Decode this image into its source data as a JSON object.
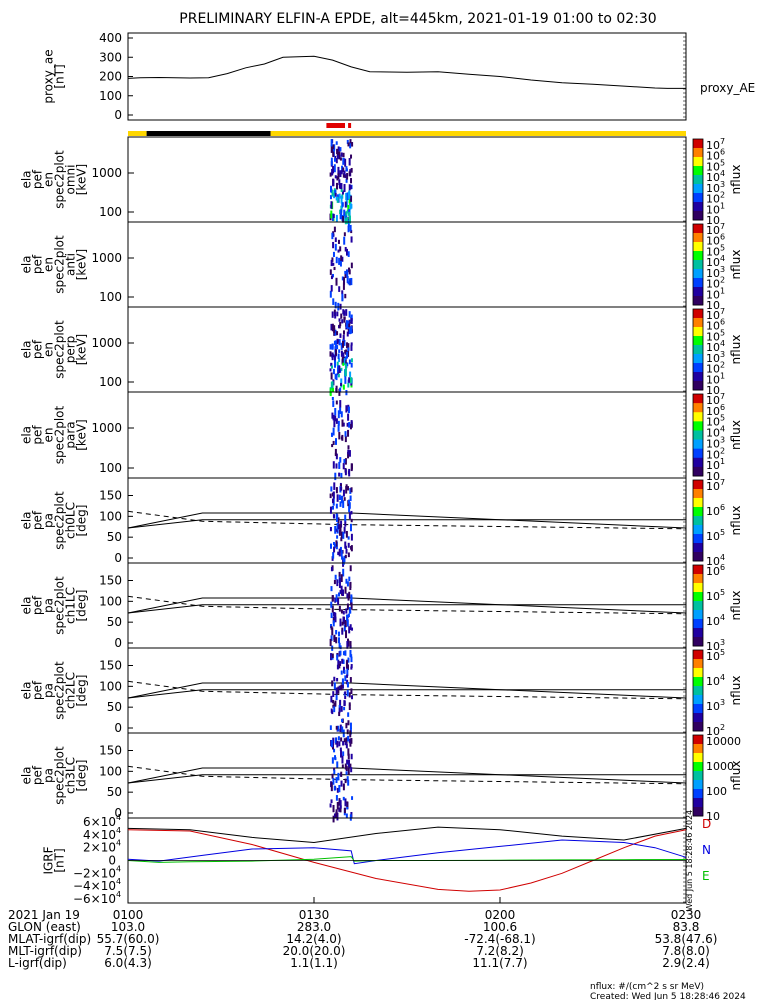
{
  "title": "PRELIMINARY ELFIN-A EPDE, alt=445km, 2021-01-19 01:00 to 02:30",
  "colors": {
    "bar_yellow": "#ffd700",
    "bar_black": "#000000",
    "bar_red": "#e00000",
    "igrf_black": "#000000",
    "igrf_blue": "#0000e0",
    "igrf_green": "#00c000",
    "igrf_red": "#d00000"
  },
  "chart_data": [
    {
      "type": "line",
      "panel": "proxy_ae",
      "ylabel_lines": [
        "proxy_ae",
        "[nT]"
      ],
      "legend": "proxy_AE",
      "ylim": [
        0,
        400
      ],
      "yticks": [
        "400",
        "300",
        "200",
        "100",
        "0"
      ],
      "x": [
        0,
        2,
        5,
        10,
        13,
        16,
        19,
        22,
        25,
        30,
        33,
        36,
        39,
        45,
        50,
        55,
        60,
        65,
        70,
        75,
        80,
        85,
        87,
        90
      ],
      "values": [
        190,
        193,
        195,
        192,
        193,
        215,
        245,
        265,
        300,
        305,
        285,
        250,
        225,
        222,
        225,
        212,
        200,
        182,
        168,
        160,
        150,
        140,
        138,
        138
      ],
      "legend_position": "right"
    },
    {
      "type": "bar",
      "panel": "status_bar",
      "segments": [
        {
          "from": 0,
          "to": 3,
          "color": "yellow"
        },
        {
          "from": 3,
          "to": 23,
          "color": "black"
        },
        {
          "from": 23,
          "to": 90,
          "color": "yellow"
        }
      ],
      "markers": [
        {
          "from": 32,
          "to": 35,
          "color": "red"
        },
        {
          "from": 35.5,
          "to": 35.9,
          "color": "red"
        }
      ]
    },
    {
      "type": "heatmap",
      "panel": "ela_pef_en_spec2plot_omni",
      "ylabel_lines": [
        "ela",
        "pef",
        "en",
        "spec2plot",
        "omni",
        "[keV]"
      ],
      "y_scale": "log",
      "yticks": [
        "1000",
        "100"
      ],
      "colorbar_label": "nflux",
      "colorbar_ticks": [
        "10",
        "10",
        "10",
        "10",
        "10",
        "10",
        "10",
        "10"
      ],
      "colorbar_exponents": [
        "7",
        "6",
        "5",
        "4",
        "3",
        "2",
        "1",
        ""
      ],
      "x_active_range": [
        32.5,
        36
      ]
    },
    {
      "type": "heatmap",
      "panel": "ela_pef_en_spec2plot_anti",
      "ylabel_lines": [
        "ela",
        "pef",
        "en",
        "spec2plot",
        "anti",
        "[keV]"
      ],
      "y_scale": "log",
      "yticks": [
        "1000",
        "100"
      ],
      "colorbar_label": "nflux",
      "colorbar_ticks": [
        "10",
        "10",
        "10",
        "10",
        "10",
        "10",
        "10",
        "10"
      ],
      "colorbar_exponents": [
        "7",
        "6",
        "5",
        "4",
        "3",
        "2",
        "1",
        ""
      ],
      "x_active_range": [
        32.5,
        36
      ]
    },
    {
      "type": "heatmap",
      "panel": "ela_pef_en_spec2plot_perp",
      "ylabel_lines": [
        "ela",
        "pef",
        "en",
        "spec2plot",
        "perp",
        "[keV]"
      ],
      "y_scale": "log",
      "yticks": [
        "1000",
        "100"
      ],
      "colorbar_label": "nflux",
      "colorbar_ticks": [
        "10",
        "10",
        "10",
        "10",
        "10",
        "10",
        "10",
        "10"
      ],
      "colorbar_exponents": [
        "7",
        "6",
        "5",
        "4",
        "3",
        "2",
        "1",
        ""
      ],
      "x_active_range": [
        32.5,
        36
      ]
    },
    {
      "type": "heatmap",
      "panel": "ela_pef_en_spec2plot_para",
      "ylabel_lines": [
        "ela",
        "pef",
        "en",
        "spec2plot",
        "para",
        "[keV]"
      ],
      "y_scale": "log",
      "yticks": [
        "1000",
        "100"
      ],
      "colorbar_label": "nflux",
      "colorbar_ticks": [
        "10",
        "10",
        "10",
        "10",
        "10",
        "10",
        "10",
        "10"
      ],
      "colorbar_exponents": [
        "7",
        "6",
        "5",
        "4",
        "3",
        "2",
        "1",
        ""
      ],
      "x_active_range": [
        32.5,
        36
      ]
    },
    {
      "type": "heatmap",
      "panel": "ela_pef_pa_spec2plot_ch0LC",
      "ylabel_lines": [
        "ela",
        "pef",
        "pa",
        "spec2plot",
        "ch0LC",
        "[deg]"
      ],
      "yticks": [
        "150",
        "100",
        "50",
        "0"
      ],
      "ylim": [
        0,
        180
      ],
      "colorbar_label": "nflux",
      "colorbar_ticks": [
        "10",
        "10",
        "10",
        "10"
      ],
      "colorbar_exponents": [
        "7",
        "6",
        "5",
        "4"
      ],
      "solid_line": {
        "x": [
          0,
          12,
          36,
          90
        ],
        "values": [
          72,
          92,
          92,
          92
        ]
      },
      "solid_line_2": {
        "x": [
          0,
          12,
          36,
          90
        ],
        "values": [
          72,
          108,
          108,
          72
        ]
      },
      "dashed_line": {
        "x": [
          0,
          12,
          36,
          90
        ],
        "values": [
          112,
          88,
          80,
          70
        ]
      }
    },
    {
      "type": "heatmap",
      "panel": "ela_pef_pa_spec2plot_ch1LC",
      "ylabel_lines": [
        "ela",
        "pef",
        "pa",
        "spec2plot",
        "ch1LC",
        "[deg]"
      ],
      "yticks": [
        "150",
        "100",
        "50",
        "0"
      ],
      "ylim": [
        0,
        180
      ],
      "colorbar_label": "nflux",
      "colorbar_ticks": [
        "10",
        "10",
        "10",
        "10"
      ],
      "colorbar_exponents": [
        "6",
        "5",
        "4",
        "3"
      ],
      "solid_line": {
        "x": [
          0,
          12,
          36,
          90
        ],
        "values": [
          72,
          92,
          92,
          92
        ]
      },
      "solid_line_2": {
        "x": [
          0,
          12,
          36,
          90
        ],
        "values": [
          72,
          108,
          108,
          72
        ]
      },
      "dashed_line": {
        "x": [
          0,
          12,
          36,
          90
        ],
        "values": [
          112,
          88,
          80,
          70
        ]
      }
    },
    {
      "type": "heatmap",
      "panel": "ela_pef_pa_spec2plot_ch2LC",
      "ylabel_lines": [
        "ela",
        "pef",
        "pa",
        "spec2plot",
        "ch2LC",
        "[deg]"
      ],
      "yticks": [
        "150",
        "100",
        "50",
        "0"
      ],
      "ylim": [
        0,
        180
      ],
      "colorbar_label": "nflux",
      "colorbar_ticks": [
        "10",
        "10",
        "10",
        "10"
      ],
      "colorbar_exponents": [
        "5",
        "4",
        "3",
        "2"
      ],
      "solid_line": {
        "x": [
          0,
          12,
          36,
          90
        ],
        "values": [
          72,
          92,
          92,
          92
        ]
      },
      "solid_line_2": {
        "x": [
          0,
          12,
          36,
          90
        ],
        "values": [
          72,
          108,
          108,
          72
        ]
      },
      "dashed_line": {
        "x": [
          0,
          12,
          36,
          90
        ],
        "values": [
          112,
          88,
          80,
          70
        ]
      }
    },
    {
      "type": "heatmap",
      "panel": "ela_pef_pa_spec2plot_ch3LC",
      "ylabel_lines": [
        "ela",
        "pef",
        "pa",
        "spec2plot",
        "ch3LC",
        "[deg]"
      ],
      "yticks": [
        "150",
        "100",
        "50",
        "0"
      ],
      "ylim": [
        0,
        180
      ],
      "colorbar_label": "nflux",
      "colorbar_ticks": [
        "10000",
        "1000",
        "100",
        "10"
      ],
      "colorbar_exponents": [
        "",
        "",
        "",
        ""
      ],
      "solid_line": {
        "x": [
          0,
          12,
          36,
          90
        ],
        "values": [
          72,
          92,
          92,
          92
        ]
      },
      "solid_line_2": {
        "x": [
          0,
          12,
          36,
          90
        ],
        "values": [
          72,
          108,
          108,
          72
        ]
      },
      "dashed_line": {
        "x": [
          0,
          12,
          36,
          90
        ],
        "values": [
          112,
          88,
          80,
          70
        ]
      }
    },
    {
      "type": "line",
      "panel": "IGRF",
      "ylabel_lines": [
        "IGRF",
        "[nT]"
      ],
      "ylim": [
        -60000,
        60000
      ],
      "yticks": [
        "6×10",
        "4×10",
        "2×10",
        "0",
        "−2×10",
        "−4×10",
        "−6×10"
      ],
      "ytick_exponent": "4",
      "legend": [
        "D",
        "N",
        "E"
      ],
      "series": [
        {
          "name": "D",
          "color": "red",
          "x": [
            0,
            10,
            20,
            30,
            40,
            50,
            55,
            60,
            65,
            70,
            75,
            80,
            85,
            90
          ],
          "values": [
            48000,
            46000,
            25000,
            -3000,
            -28000,
            -45000,
            -48000,
            -46000,
            -35000,
            -20000,
            0,
            20000,
            38000,
            48000
          ]
        },
        {
          "name": "N",
          "color": "blue",
          "x": [
            0,
            5,
            12,
            20,
            30,
            36,
            36.5,
            40,
            50,
            60,
            70,
            80,
            85,
            90
          ],
          "values": [
            2000,
            -1000,
            8000,
            18000,
            20000,
            15000,
            -5000,
            0,
            12000,
            22000,
            32000,
            28000,
            20000,
            5000
          ]
        },
        {
          "name": "E",
          "color": "green",
          "x": [
            0,
            5,
            10,
            20,
            30,
            36,
            36.5,
            40,
            50,
            60,
            70,
            80,
            90
          ],
          "values": [
            0,
            -3000,
            -2000,
            -1000,
            2000,
            6000,
            -1000,
            0,
            0,
            500,
            1000,
            1200,
            1500
          ]
        },
        {
          "name": "total",
          "color": "black",
          "x": [
            0,
            10,
            20,
            30,
            40,
            50,
            60,
            70,
            80,
            90
          ],
          "values": [
            50000,
            48000,
            36000,
            28000,
            42000,
            52000,
            48000,
            38000,
            32000,
            50000
          ]
        }
      ],
      "side_note": "Wed Jun  5 18:28:46 2024"
    }
  ],
  "x_axis": {
    "rows": [
      {
        "label": "2021 Jan 19",
        "values": [
          "0100",
          "0130",
          "0200",
          "0230"
        ]
      },
      {
        "label": "GLON (east)",
        "values": [
          "103.0",
          "283.0",
          "100.6",
          "83.8"
        ]
      },
      {
        "label": "MLAT-igrf(dip)",
        "values": [
          "55.7(60.0)",
          "14.2(4.0)",
          "-72.4(-68.1)",
          "53.8(47.6)"
        ]
      },
      {
        "label": "MLT-igrf(dip)",
        "values": [
          "7.5(7.5)",
          "20.0(20.0)",
          "7.2(8.2)",
          "7.8(8.0)"
        ]
      },
      {
        "label": "L-igrf(dip)",
        "values": [
          "6.0(4.3)",
          "1.1(1.1)",
          "11.1(7.7)",
          "2.9(2.4)"
        ]
      }
    ]
  },
  "footer": {
    "line1": "nflux: #/(cm^2 s sr MeV)",
    "line2": "Created: Wed Jun  5 18:28:46 2024"
  }
}
